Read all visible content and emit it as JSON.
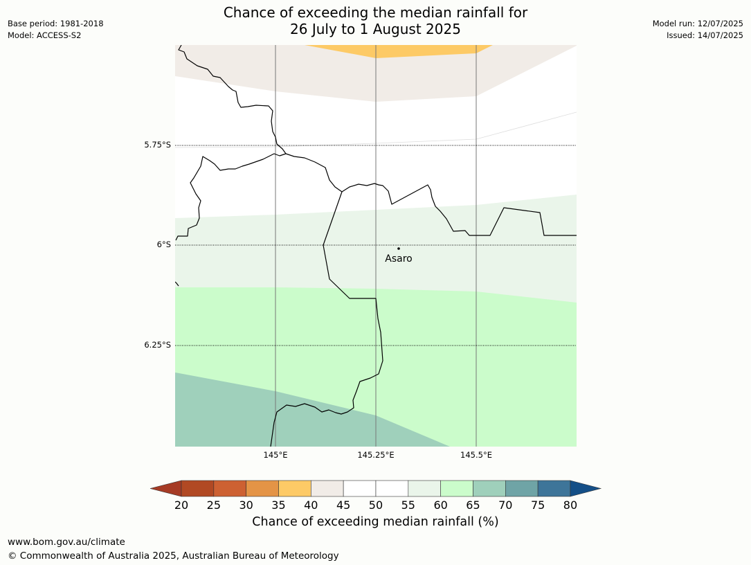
{
  "title_line1": "Chance of exceeding the median rainfall for",
  "title_line2": "26 July to 1 August 2025",
  "meta_left": {
    "base_period": "Base period: 1981-2018",
    "model": "Model: ACCESS-S2"
  },
  "meta_right": {
    "model_run": "Model run: 12/07/2025",
    "issued": "Issued: 14/07/2025"
  },
  "map": {
    "lat_labels": [
      "5.75°S",
      "6°S",
      "6.25°S"
    ],
    "lon_labels": [
      "145°E",
      "145.25°E",
      "145.5°E"
    ],
    "place": {
      "name": "Asaro"
    },
    "bands": [
      {
        "name": "35-40",
        "color": "#fdca66"
      },
      {
        "name": "40-45",
        "color": "#f1ece7"
      },
      {
        "name": "45-55",
        "color": "#ffffff"
      },
      {
        "name": "55-60",
        "color": "#eaf5ea"
      },
      {
        "name": "60-65",
        "color": "#cbfccb"
      },
      {
        "name": "65-70",
        "color": "#9fd0bb"
      }
    ]
  },
  "colorbar": {
    "ticks": [
      "20",
      "25",
      "30",
      "35",
      "40",
      "45",
      "50",
      "55",
      "60",
      "65",
      "70",
      "75",
      "80"
    ],
    "colors": [
      "#a63b25",
      "#b14923",
      "#cd6132",
      "#e49446",
      "#fdca66",
      "#f1ece7",
      "#ffffff",
      "#ffffff",
      "#eaf5ea",
      "#cbfccb",
      "#9fd0bb",
      "#6fa4a6",
      "#3e7599",
      "#144f87"
    ],
    "label": "Chance of exceeding median rainfall (%)"
  },
  "footer": {
    "url": "www.bom.gov.au/climate",
    "copyright": "© Commonwealth of Australia 2025, Australian Bureau of Meteorology"
  }
}
